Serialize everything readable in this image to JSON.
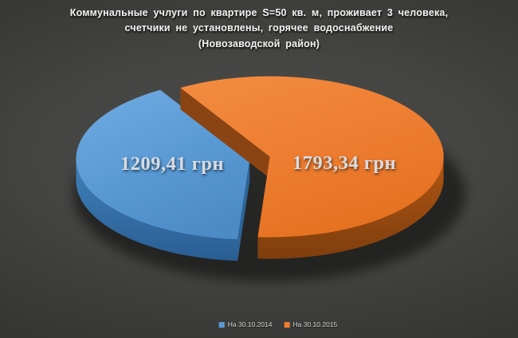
{
  "title": {
    "line1": "Коммунальные учлуги по квартире S=50 кв. м, проживает 3 человека,",
    "line2": "счетчики не установлены, горячее водоснабжение",
    "line3": "(Новозаводской район)"
  },
  "chart_data": {
    "type": "pie",
    "style": "3d_exploded",
    "title": "Коммунальные учлуги по квартире S=50 кв. м, проживает 3 человека, счетчики не установлены, горячее водоснабжение (Новозаводской район)",
    "unit": "грн",
    "legend_position": "bottom",
    "slices": [
      {
        "legend_label": "На 30.10.2014",
        "value": 1209.41,
        "display_value": "1209,41 грн",
        "color": "#5B9BD5",
        "shades": {
          "top_light": "#6FA9E1",
          "top": "#5B9BD5",
          "top_dark": "#4C8BC6",
          "side": "#4181BA",
          "side_dark": "#2A5E93",
          "cut": "#2E6496",
          "bottom": "#24547F"
        }
      },
      {
        "legend_label": "На 30.10.2015",
        "value": 1793.34,
        "display_value": "1793,34 грн",
        "color": "#ED7D31",
        "shades": {
          "top_light": "#F28B3E",
          "top": "#ED7D31",
          "top_dark": "#E4711F",
          "side": "#B25614",
          "side_dark": "#7E3E0D",
          "cut": "#8A4414",
          "bottom": "#6E3309"
        }
      }
    ]
  },
  "styles": {
    "background_center": "#4D4D4B",
    "background_edge": "#272725",
    "title_color": "#F2F2F2",
    "label_color": "#D8DCE2",
    "legend_text_color": "#D9D9D9"
  }
}
